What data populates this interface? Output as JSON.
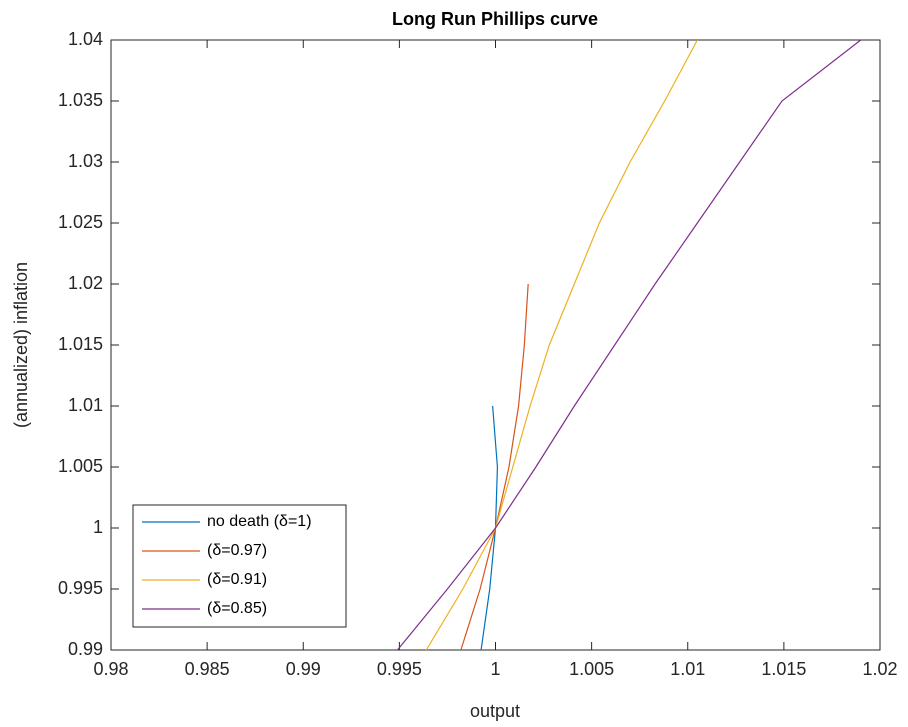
{
  "chart_data": {
    "type": "line",
    "title": "Long Run Phillips curve",
    "xlabel": "output",
    "ylabel": "(annualized) inflation",
    "xlim": [
      0.98,
      1.02
    ],
    "ylim": [
      0.99,
      1.04
    ],
    "xticks": [
      0.98,
      0.985,
      0.99,
      0.995,
      1,
      1.005,
      1.01,
      1.015,
      1.02
    ],
    "yticks": [
      0.99,
      0.995,
      1,
      1.005,
      1.01,
      1.015,
      1.02,
      1.025,
      1.03,
      1.035,
      1.04
    ],
    "grid": false,
    "legend": "lower-left",
    "series": [
      {
        "name": "no death (δ=1)",
        "color": "#0072BD",
        "x": [
          0.99925,
          0.9997,
          1.0,
          1.0001,
          0.99985
        ],
        "values": [
          0.99,
          0.995,
          1.0,
          1.005,
          1.01
        ]
      },
      {
        "name": "(δ=0.97)",
        "color": "#D95319",
        "x": [
          0.9982,
          0.9992,
          1.0,
          1.0007,
          1.0012,
          1.0015,
          1.0017
        ],
        "values": [
          0.99,
          0.995,
          1.0,
          1.005,
          1.01,
          1.015,
          1.02
        ]
      },
      {
        "name": "(δ=0.91)",
        "color": "#EDB120",
        "x": [
          0.9964,
          0.9983,
          1.0,
          1.0009,
          1.0018,
          1.0028,
          1.0041,
          1.0054,
          1.007,
          1.0088,
          1.0105
        ],
        "values": [
          0.99,
          0.995,
          1.0,
          1.005,
          1.01,
          1.015,
          1.02,
          1.025,
          1.03,
          1.035,
          1.04
        ]
      },
      {
        "name": "(δ=0.85)",
        "color": "#7E2F8E",
        "x": [
          0.9949,
          0.9975,
          1.0,
          1.0021,
          1.0041,
          1.0062,
          1.0083,
          1.0105,
          1.0127,
          1.0149,
          1.019
        ],
        "values": [
          0.99,
          0.995,
          1.0,
          1.005,
          1.01,
          1.015,
          1.02,
          1.025,
          1.03,
          1.035,
          1.04
        ]
      }
    ]
  }
}
